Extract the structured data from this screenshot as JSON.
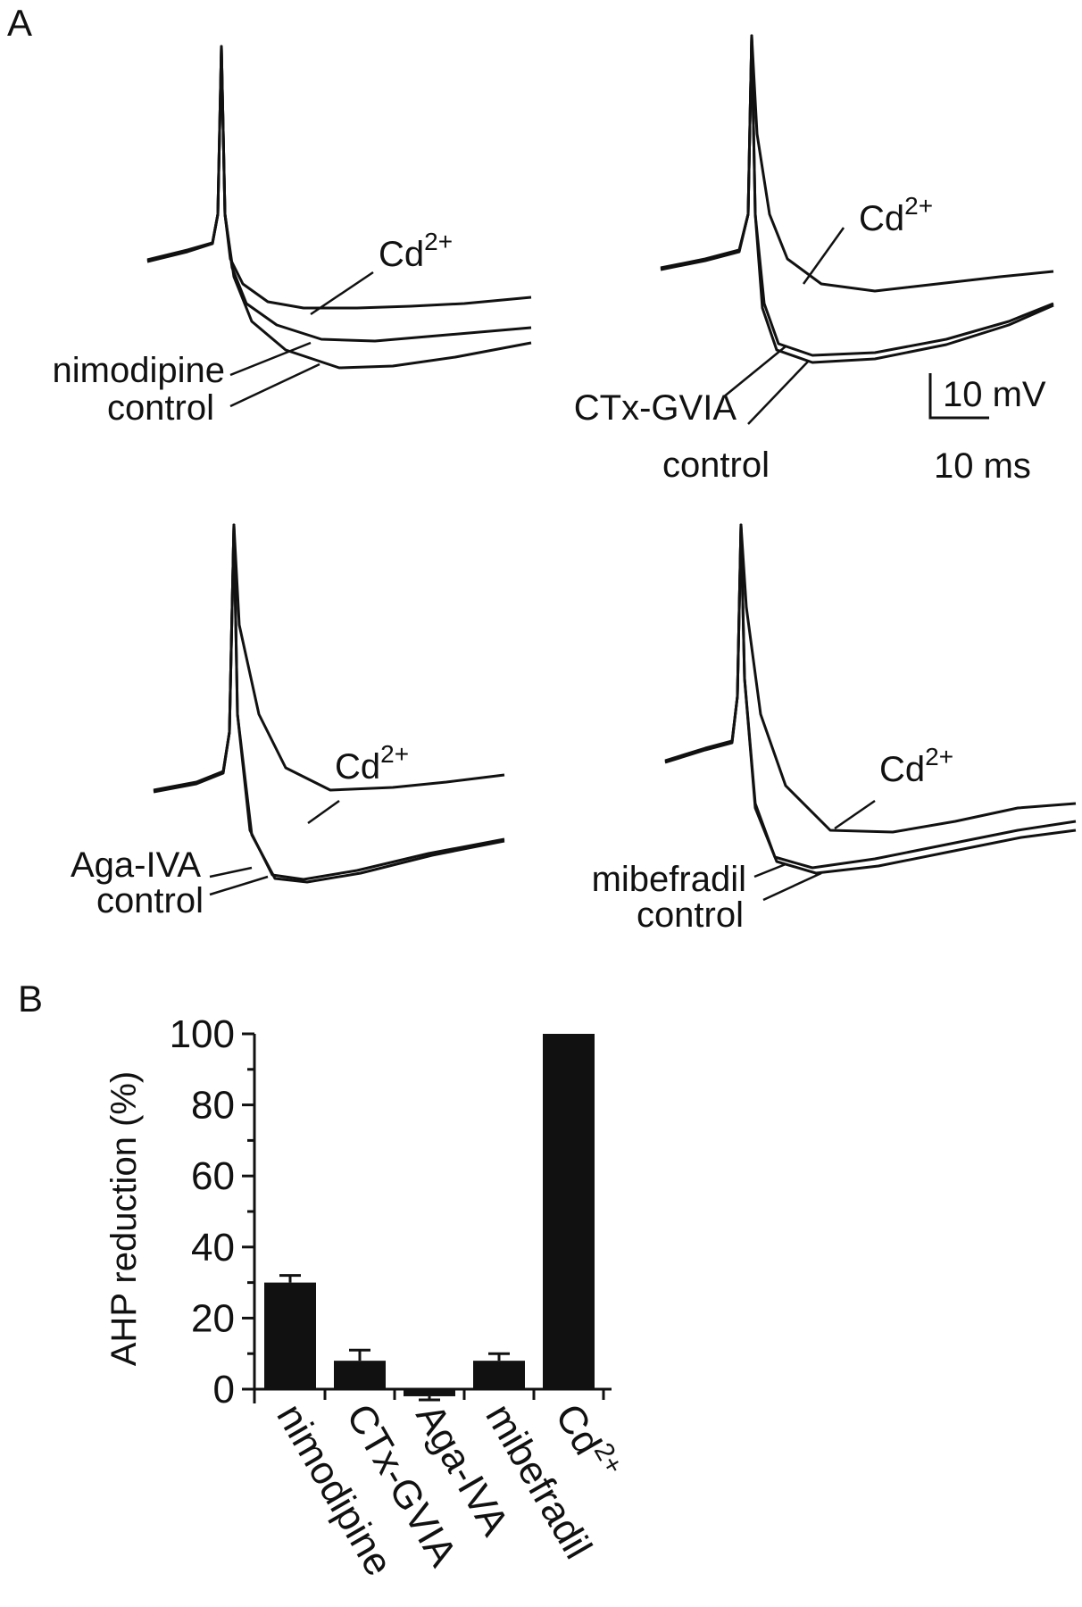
{
  "panel_a": {
    "letter": "A",
    "scale_bar": {
      "voltage_label": "10 mV",
      "time_label": "10 ms"
    },
    "panels": [
      {
        "id": "nimodipine",
        "cd_label": "Cd",
        "cd_sup": "2+",
        "drug_label": "nimodipine",
        "control_label": "control"
      },
      {
        "id": "ctx",
        "cd_label": "Cd",
        "cd_sup": "2+",
        "drug_label": "CTx-GVIA",
        "control_label": "control"
      },
      {
        "id": "aga",
        "cd_label": "Cd",
        "cd_sup": "2+",
        "drug_label": "Aga-IVA",
        "control_label": "control"
      },
      {
        "id": "mibefradil",
        "cd_label": "Cd",
        "cd_sup": "2+",
        "drug_label": "mibefradil",
        "control_label": "control"
      }
    ]
  },
  "panel_b": {
    "letter": "B"
  },
  "chart_data": {
    "type": "bar",
    "title": "",
    "ylabel": "AHP reduction (%)",
    "xlabel": "",
    "ylim": [
      0,
      100
    ],
    "yticks": [
      "0",
      "20",
      "40",
      "60",
      "80",
      "100"
    ],
    "categories": [
      "nimodipine",
      "CTx-GVIA",
      "Aga-IVA",
      "mibefradil",
      "Cd"
    ],
    "category_sup": [
      "",
      "",
      "",
      "",
      "2+"
    ],
    "values": [
      30,
      8,
      -2,
      8,
      100
    ],
    "errors": [
      2,
      3,
      1,
      2,
      0
    ]
  }
}
